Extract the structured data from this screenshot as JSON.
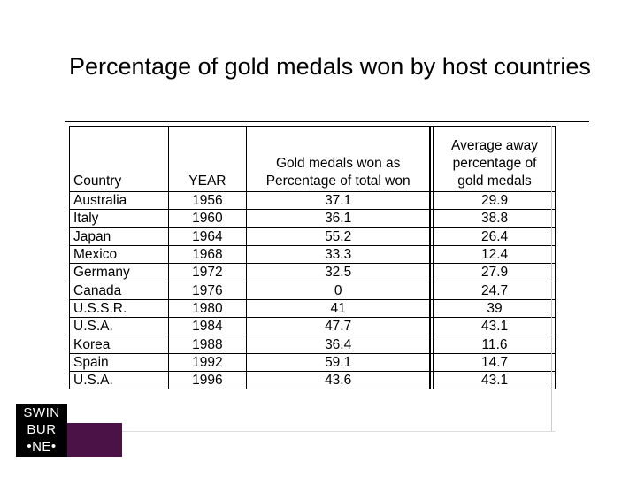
{
  "slide": {
    "title": "Percentage of gold medals won by host countries"
  },
  "table": {
    "headers": {
      "country": "Country",
      "year": "YEAR",
      "gold": "Gold medals won as Percentage of total won",
      "away": "Average away percentage of gold medals"
    },
    "rows": [
      {
        "country": "Australia",
        "year": "1956",
        "gold": "37.1",
        "away": "29.9"
      },
      {
        "country": "Italy",
        "year": "1960",
        "gold": "36.1",
        "away": "38.8"
      },
      {
        "country": "Japan",
        "year": "1964",
        "gold": "55.2",
        "away": "26.4"
      },
      {
        "country": "Mexico",
        "year": "1968",
        "gold": "33.3",
        "away": "12.4"
      },
      {
        "country": "Germany",
        "year": "1972",
        "gold": "32.5",
        "away": "27.9"
      },
      {
        "country": "Canada",
        "year": "1976",
        "gold": "0",
        "away": "24.7"
      },
      {
        "country": "U.S.S.R.",
        "year": "1980",
        "gold": "41",
        "away": "39"
      },
      {
        "country": "U.S.A.",
        "year": "1984",
        "gold": "47.7",
        "away": "43.1"
      },
      {
        "country": "Korea",
        "year": "1988",
        "gold": "36.4",
        "away": "11.6"
      },
      {
        "country": "Spain",
        "year": "1992",
        "gold": "59.1",
        "away": "14.7"
      },
      {
        "country": "U.S.A.",
        "year": "1996",
        "gold": "43.6",
        "away": "43.1"
      }
    ]
  },
  "logo": {
    "line1": "SWIN",
    "line2": "BUR",
    "line3": "•NE•",
    "colors": {
      "black": "#000000",
      "purple": "#4b1248"
    }
  }
}
